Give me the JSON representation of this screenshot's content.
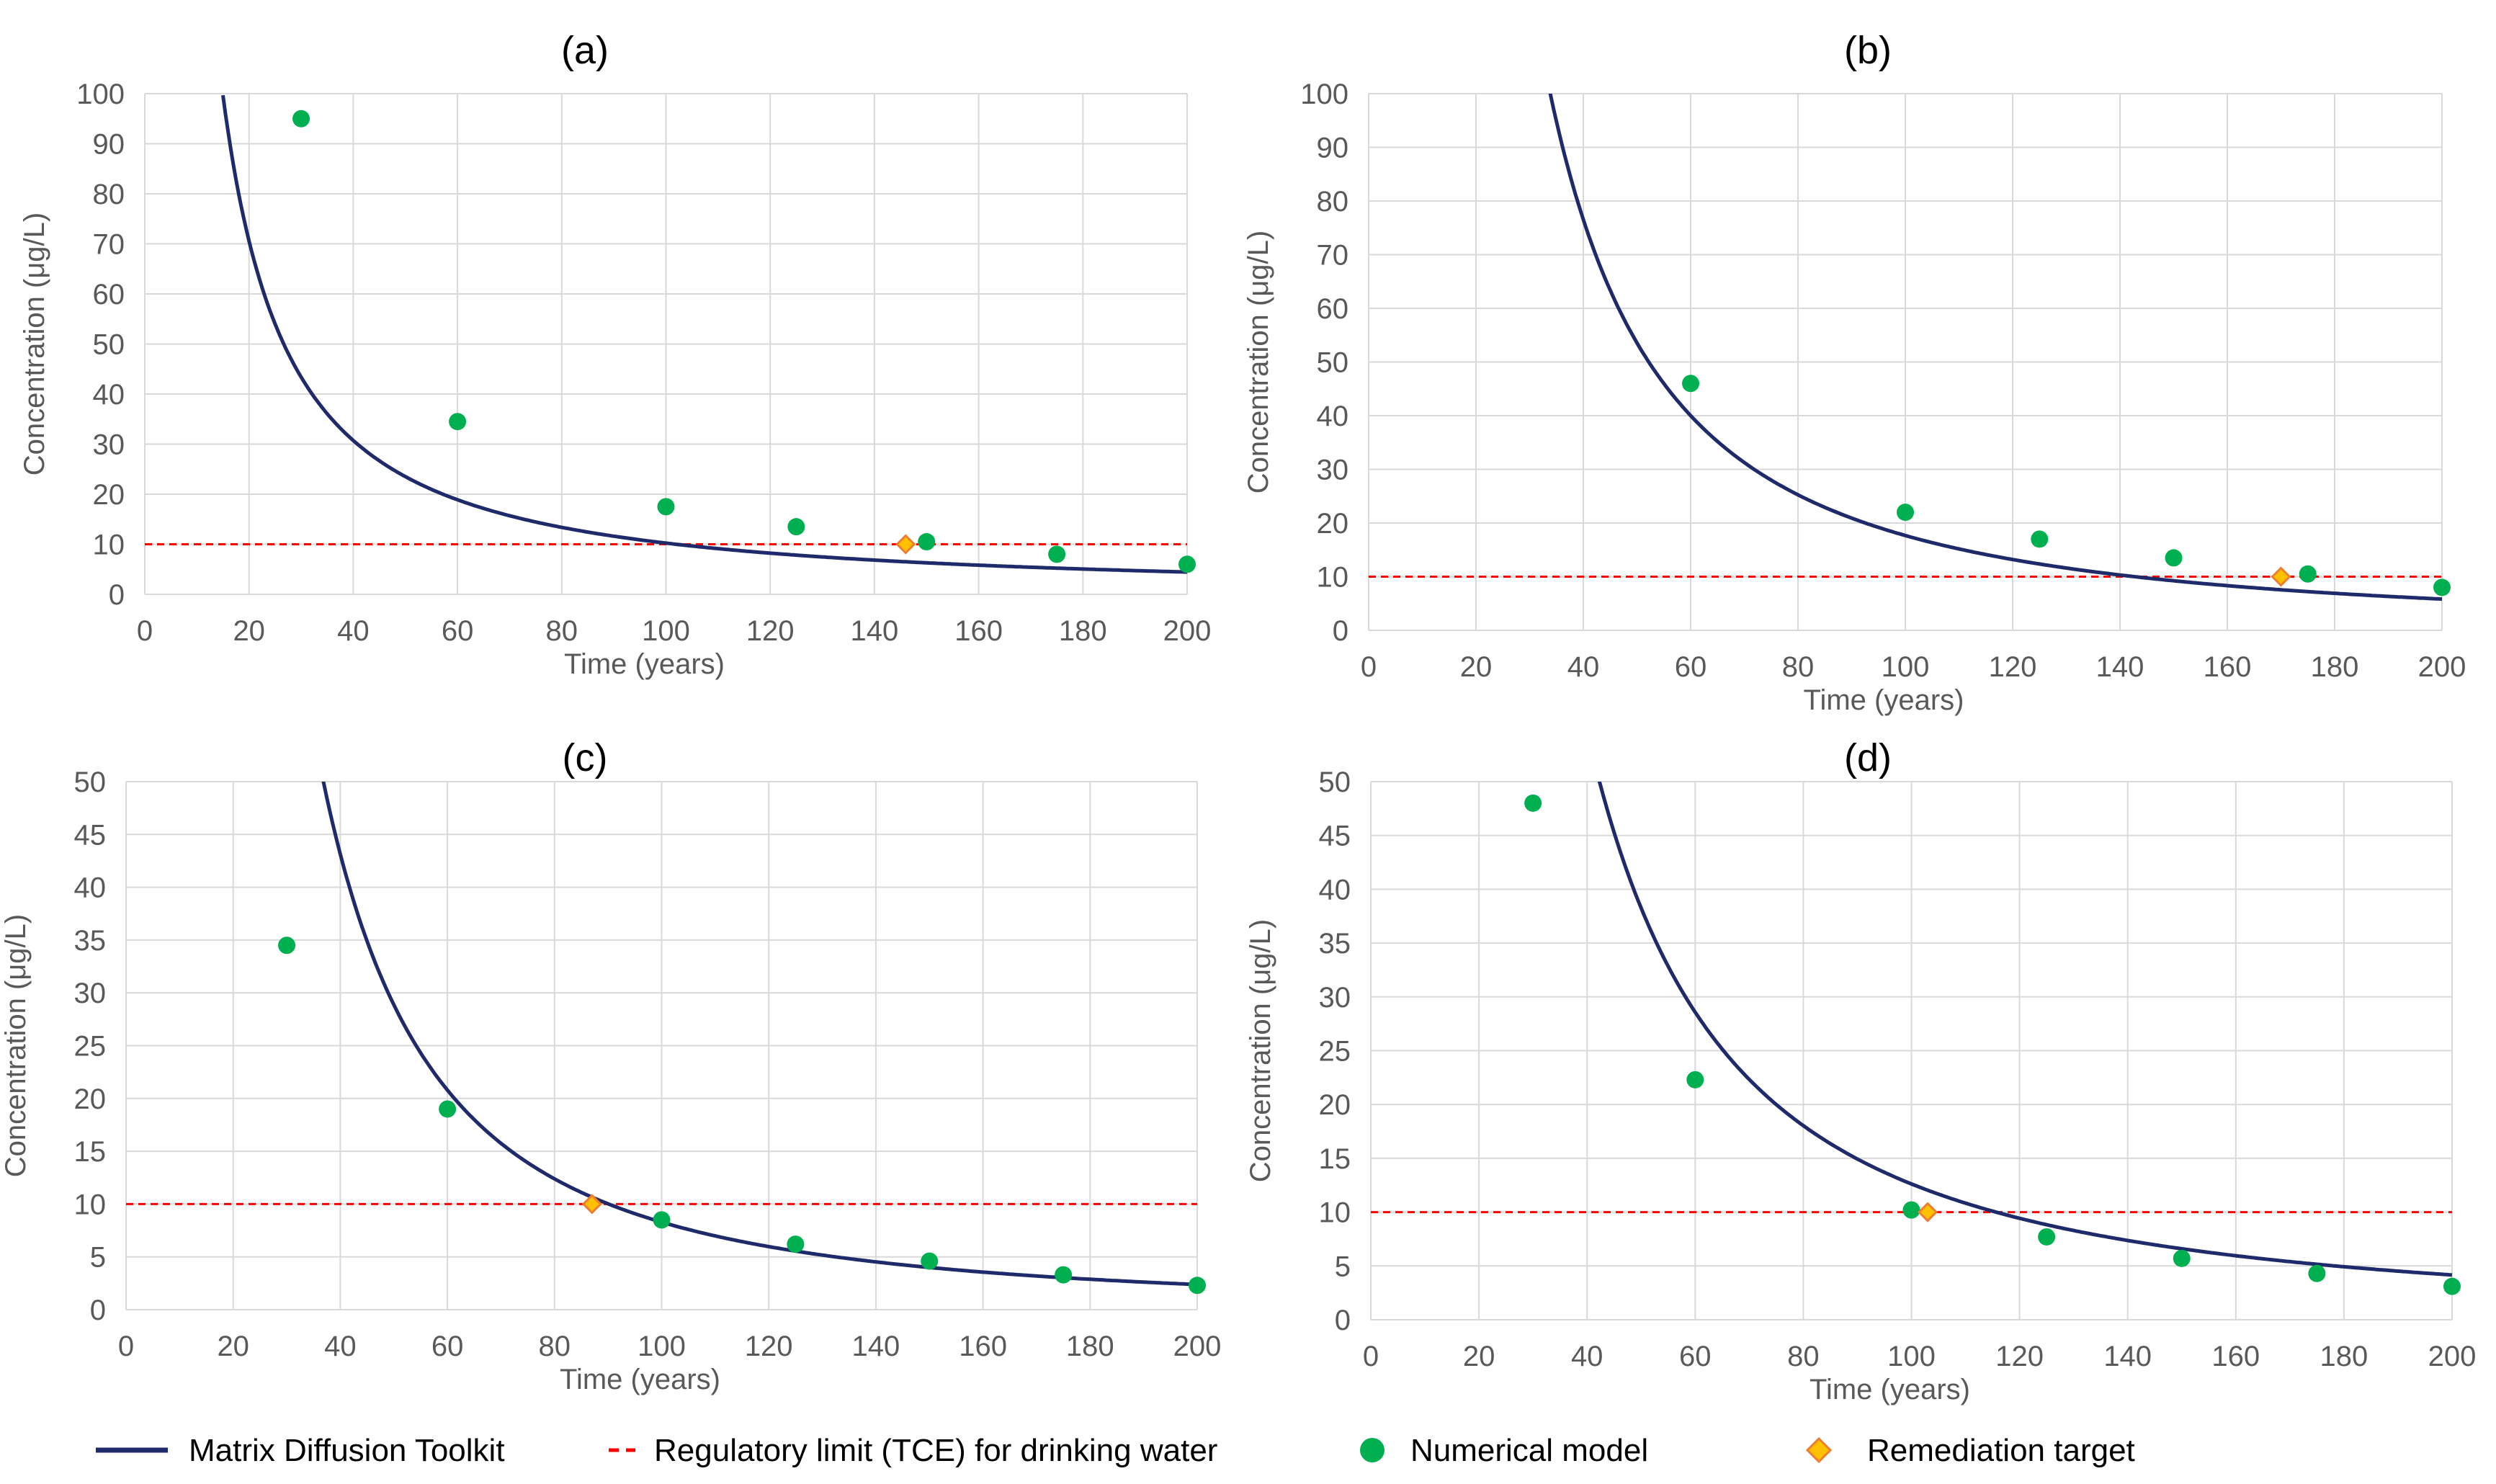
{
  "colors": {
    "curve": "#1F2A6B",
    "regulatory": "#FF0000",
    "numerical": "#00B050",
    "target_fill": "#FFC000",
    "target_stroke": "#ED7D31",
    "grid": "#D9D9D9"
  },
  "legend": [
    {
      "key": "curve",
      "label": "Matrix Diffusion Toolkit",
      "icon": "solid-line-icon"
    },
    {
      "key": "regulatory",
      "label": "Regulatory limit (TCE) for drinking water",
      "icon": "dashed-line-icon"
    },
    {
      "key": "numerical",
      "label": "Numerical model",
      "icon": "circle-marker-icon"
    },
    {
      "key": "target",
      "label": "Remediation target",
      "icon": "diamond-marker-icon"
    }
  ],
  "chart_data": [
    {
      "id": "a",
      "type": "scatter",
      "title": "(a)",
      "xlabel": "Time (years)",
      "ylabel": "Concentration (μg/L)",
      "xlim": [
        0,
        200
      ],
      "ylim": [
        0,
        100
      ],
      "xticks": [
        0,
        20,
        40,
        60,
        80,
        100,
        120,
        140,
        160,
        180,
        200
      ],
      "yticks": [
        0,
        10,
        20,
        30,
        40,
        50,
        60,
        70,
        80,
        90,
        100
      ],
      "curve": {
        "name": "Matrix Diffusion Toolkit",
        "k": 2570,
        "p": 1.2
      },
      "regulatory_limit": 10,
      "numerical_model": {
        "x": [
          30,
          60,
          100,
          125,
          150,
          175,
          200
        ],
        "y": [
          95,
          34.5,
          17.5,
          13.5,
          10.5,
          8,
          6
        ]
      },
      "remediation_target": {
        "x": 146,
        "y": 10
      }
    },
    {
      "id": "b",
      "type": "scatter",
      "title": "(b)",
      "xlabel": "Time (years)",
      "ylabel": "Concentration (μg/L)",
      "xlim": [
        0,
        200
      ],
      "ylim": [
        0,
        100
      ],
      "xticks": [
        0,
        20,
        40,
        60,
        80,
        100,
        120,
        140,
        160,
        180,
        200
      ],
      "yticks": [
        0,
        10,
        20,
        30,
        40,
        50,
        60,
        70,
        80,
        90,
        100
      ],
      "curve": {
        "name": "Matrix Diffusion Toolkit",
        "k": 28000,
        "p": 1.6
      },
      "regulatory_limit": 10,
      "numerical_model": {
        "x": [
          60,
          100,
          125,
          150,
          175,
          200
        ],
        "y": [
          46,
          22,
          17,
          13.5,
          10.5,
          8
        ]
      },
      "remediation_target": {
        "x": 170,
        "y": 10
      }
    },
    {
      "id": "c",
      "type": "scatter",
      "title": "(c)",
      "xlabel": "Time (years)",
      "ylabel": "Concentration (μg/L)",
      "xlim": [
        0,
        200
      ],
      "ylim": [
        0,
        50
      ],
      "xticks": [
        0,
        20,
        40,
        60,
        80,
        100,
        120,
        140,
        160,
        180,
        200
      ],
      "yticks": [
        0,
        5,
        10,
        15,
        20,
        25,
        30,
        35,
        40,
        45,
        50
      ],
      "curve": {
        "name": "Matrix Diffusion Toolkit",
        "k": 33000,
        "p": 1.8
      },
      "regulatory_limit": 10,
      "numerical_model": {
        "x": [
          30,
          60,
          100,
          125,
          150,
          175,
          200
        ],
        "y": [
          34.5,
          19,
          8.5,
          6.2,
          4.6,
          3.3,
          2.3
        ]
      },
      "remediation_target": {
        "x": 87,
        "y": 10
      }
    },
    {
      "id": "d",
      "type": "scatter",
      "title": "(d)",
      "xlabel": "Time (years)",
      "ylabel": "Concentration (μg/L)",
      "xlim": [
        0,
        200
      ],
      "ylim": [
        0,
        50
      ],
      "xticks": [
        0,
        20,
        40,
        60,
        80,
        100,
        120,
        140,
        160,
        180,
        200
      ],
      "yticks": [
        0,
        5,
        10,
        15,
        20,
        25,
        30,
        35,
        40,
        45,
        50
      ],
      "curve": {
        "name": "Matrix Diffusion Toolkit",
        "k": 20000,
        "p": 1.6
      },
      "regulatory_limit": 10,
      "numerical_model": {
        "x": [
          30,
          60,
          100,
          125,
          150,
          175,
          200
        ],
        "y": [
          48,
          22.3,
          10.2,
          7.7,
          5.7,
          4.3,
          3.1
        ]
      },
      "remediation_target": {
        "x": 103,
        "y": 10
      }
    }
  ]
}
